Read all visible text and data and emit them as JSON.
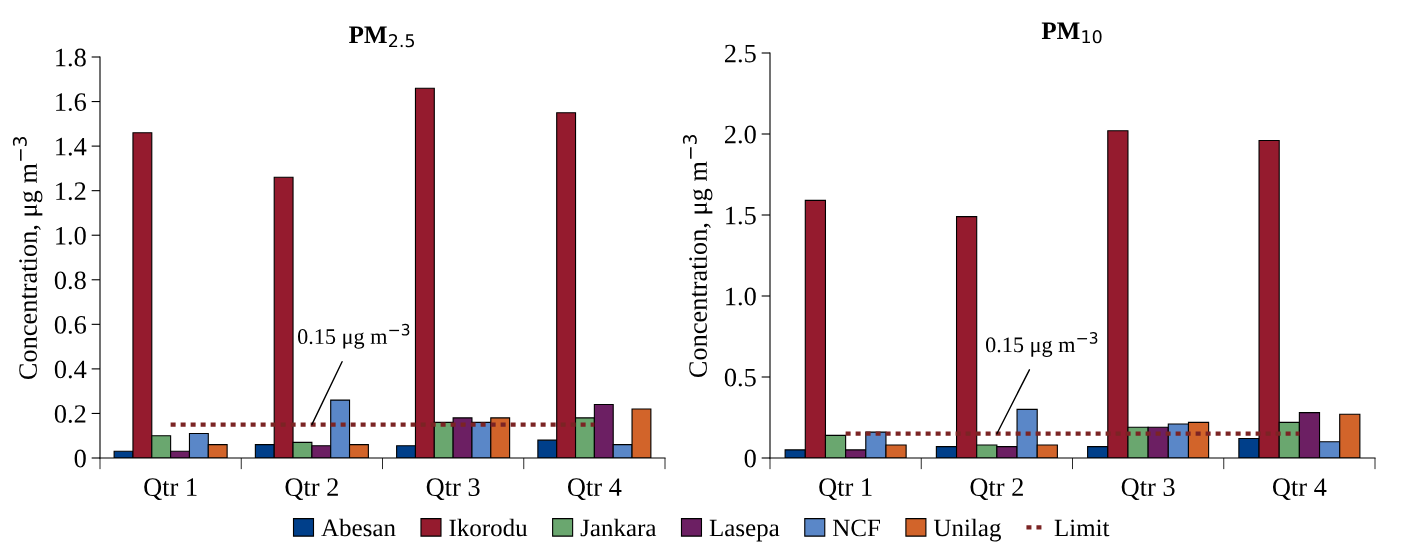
{
  "chart_data": [
    {
      "type": "bar",
      "title": "PM$_{2.5}$",
      "ylabel": "Concentration, μg m$^{−3}$",
      "categories": [
        "Qtr 1",
        "Qtr 2",
        "Qtr 3",
        "Qtr 4"
      ],
      "series": [
        {
          "name": "Abesan",
          "color": "#003f8a",
          "values": [
            0.03,
            0.06,
            0.055,
            0.08
          ]
        },
        {
          "name": "Ikorodu",
          "color": "#951b2e",
          "values": [
            1.46,
            1.26,
            1.66,
            1.55
          ]
        },
        {
          "name": "Jankara",
          "color": "#6aa76f",
          "values": [
            0.1,
            0.07,
            0.16,
            0.18
          ]
        },
        {
          "name": "Lasepa",
          "color": "#6c1f63",
          "values": [
            0.03,
            0.055,
            0.18,
            0.24
          ]
        },
        {
          "name": "NCF",
          "color": "#5a87c8",
          "values": [
            0.11,
            0.26,
            0.16,
            0.06
          ]
        },
        {
          "name": "Unilag",
          "color": "#d2642a",
          "values": [
            0.06,
            0.06,
            0.18,
            0.22
          ]
        },
        {
          "name": "Limit",
          "type": "line",
          "line_style": "dotted",
          "color": "#7b2424",
          "values": [
            0.15,
            0.15,
            0.15,
            0.15
          ]
        }
      ],
      "ylim": [
        0,
        1.8
      ],
      "yticks": [
        0,
        0.2,
        0.4,
        0.6,
        0.8,
        {
          "value": 1,
          "label": "1.0"
        },
        1.2,
        1.4,
        1.6,
        1.8
      ],
      "annotations": [
        {
          "text": "0.15 μg m$^{−3}$",
          "x": "Qtr 2",
          "y": 0.15
        }
      ],
      "legend": "bottom",
      "grid": false
    },
    {
      "type": "bar",
      "title": "PM$_{10}$",
      "ylabel": "Concentration, μg m$^{−3}$",
      "categories": [
        "Qtr 1",
        "Qtr 2",
        "Qtr 3",
        "Qtr 4"
      ],
      "series": [
        {
          "name": "Abesan",
          "color": "#003f8a",
          "values": [
            0.05,
            0.07,
            0.07,
            0.12
          ]
        },
        {
          "name": "Ikorodu",
          "color": "#951b2e",
          "values": [
            1.59,
            1.49,
            2.02,
            1.96
          ]
        },
        {
          "name": "Jankara",
          "color": "#6aa76f",
          "values": [
            0.14,
            0.08,
            0.19,
            0.22
          ]
        },
        {
          "name": "Lasepa",
          "color": "#6c1f63",
          "values": [
            0.05,
            0.07,
            0.19,
            0.28
          ]
        },
        {
          "name": "NCF",
          "color": "#5a87c8",
          "values": [
            0.16,
            0.3,
            0.21,
            0.1
          ]
        },
        {
          "name": "Unilag",
          "color": "#d2642a",
          "values": [
            0.08,
            0.08,
            0.22,
            0.27
          ]
        },
        {
          "name": "Limit",
          "type": "line",
          "line_style": "dotted",
          "color": "#7b2424",
          "values": [
            0.15,
            0.15,
            0.15,
            0.15
          ]
        }
      ],
      "ylim": [
        0,
        2.5
      ],
      "yticks": [
        0,
        {
          "value": 0.5,
          "label": "0.5"
        },
        {
          "value": 1,
          "label": "1.0"
        },
        {
          "value": 1.5,
          "label": "1.5"
        },
        {
          "value": 2,
          "label": "2.0"
        },
        {
          "value": 2.5,
          "label": "2.5"
        }
      ],
      "annotations": [
        {
          "text": "0.15 μg m$^{−3}$",
          "x": "Qtr 2",
          "y": 0.15
        }
      ],
      "legend": false,
      "grid": false
    }
  ]
}
